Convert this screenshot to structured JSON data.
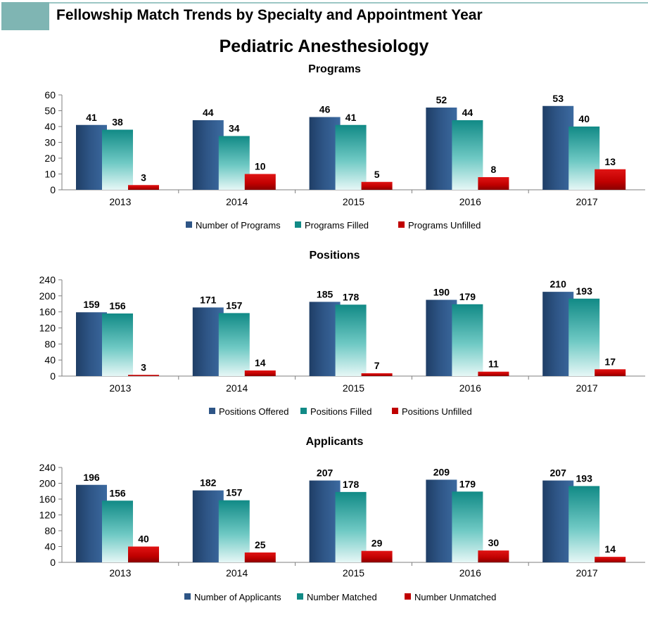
{
  "header": {
    "title": "Fellowship Match Trends by Specialty and Appointment Year",
    "subtitle": "Pediatric Anesthesiology"
  },
  "colors": {
    "series1": "#2e5586",
    "series2": "#118a86",
    "series3": "#c00000",
    "header_block": "#7fb5b3"
  },
  "chart_data": [
    {
      "type": "bar",
      "title": "Programs",
      "categories": [
        "2013",
        "2014",
        "2015",
        "2016",
        "2017"
      ],
      "ylim": [
        0,
        60
      ],
      "yticks": [
        "0",
        "10",
        "20",
        "30",
        "40",
        "50",
        "60"
      ],
      "legend_position": "bottom",
      "grid": false,
      "series": [
        {
          "name": "Number of Programs",
          "values": [
            41,
            44,
            46,
            52,
            53
          ]
        },
        {
          "name": "Programs Filled",
          "values": [
            38,
            34,
            41,
            44,
            40
          ]
        },
        {
          "name": "Programs Unfilled",
          "values": [
            3,
            10,
            5,
            8,
            13
          ]
        }
      ]
    },
    {
      "type": "bar",
      "title": "Positions",
      "categories": [
        "2013",
        "2014",
        "2015",
        "2016",
        "2017"
      ],
      "ylim": [
        0,
        240
      ],
      "yticks": [
        "0",
        "40",
        "80",
        "120",
        "160",
        "200",
        "240"
      ],
      "legend_position": "bottom",
      "grid": false,
      "series": [
        {
          "name": "Positions Offered",
          "values": [
            159,
            171,
            185,
            190,
            210
          ]
        },
        {
          "name": "Positions Filled",
          "values": [
            156,
            157,
            178,
            179,
            193
          ]
        },
        {
          "name": "Positions Unfilled",
          "values": [
            3,
            14,
            7,
            11,
            17
          ]
        }
      ]
    },
    {
      "type": "bar",
      "title": "Applicants",
      "categories": [
        "2013",
        "2014",
        "2015",
        "2016",
        "2017"
      ],
      "ylim": [
        0,
        240
      ],
      "yticks": [
        "0",
        "40",
        "80",
        "120",
        "160",
        "200",
        "240"
      ],
      "legend_position": "bottom",
      "grid": false,
      "series": [
        {
          "name": "Number of Applicants",
          "values": [
            196,
            182,
            207,
            209,
            207
          ]
        },
        {
          "name": "Number Matched",
          "values": [
            156,
            157,
            178,
            179,
            193
          ]
        },
        {
          "name": "Number Unmatched",
          "values": [
            40,
            25,
            29,
            30,
            14
          ]
        }
      ]
    }
  ]
}
